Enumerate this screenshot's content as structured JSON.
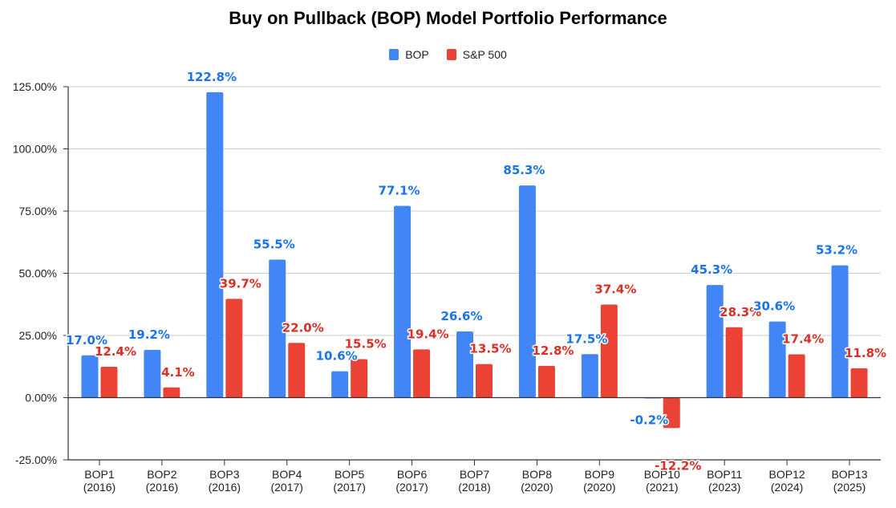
{
  "chart_data": {
    "type": "bar",
    "title": "Buy on Pullback (BOP) Model Portfolio Performance",
    "xlabel": "",
    "ylabel": "",
    "ylim": [
      -25,
      125
    ],
    "yticks": [
      -25,
      0,
      25,
      50,
      75,
      100,
      125
    ],
    "ytick_labels": [
      "-25.00%",
      "0.00%",
      "25.00%",
      "50.00%",
      "75.00%",
      "100.00%",
      "125.00%"
    ],
    "grid": true,
    "legend_position": "top-center",
    "categories": [
      [
        "BOP1",
        "(2016)"
      ],
      [
        "BOP2",
        "(2016)"
      ],
      [
        "BOP3",
        "(2016)"
      ],
      [
        "BOP4",
        "(2017)"
      ],
      [
        "BOP5",
        "(2017)"
      ],
      [
        "BOP6",
        "(2017)"
      ],
      [
        "BOP7",
        "(2018)"
      ],
      [
        "BOP8",
        "(2020)"
      ],
      [
        "BOP9",
        "(2020)"
      ],
      [
        "BOP10",
        "(2021)"
      ],
      [
        "BOP11",
        "(2023)"
      ],
      [
        "BOP12",
        "(2024)"
      ],
      [
        "BOP13",
        "(2025)"
      ]
    ],
    "series": [
      {
        "name": "BOP",
        "color": "#4285f4",
        "label_color": "#1a73e8",
        "values": [
          17.0,
          19.2,
          122.8,
          55.5,
          10.6,
          77.1,
          26.6,
          85.3,
          17.5,
          -0.2,
          45.3,
          30.6,
          53.2
        ],
        "labels": [
          "17.0%",
          "19.2%",
          "122.8%",
          "55.5%",
          "10.6%",
          "77.1%",
          "26.6%",
          "85.3%",
          "17.5%",
          "-0.2%",
          "45.3%",
          "30.6%",
          "53.2%"
        ]
      },
      {
        "name": "S&P 500",
        "color": "#ea4335",
        "label_color": "#d93025",
        "values": [
          12.4,
          4.1,
          39.7,
          22.0,
          15.5,
          19.4,
          13.5,
          12.8,
          37.4,
          -12.2,
          28.3,
          17.4,
          11.8
        ],
        "labels": [
          "12.4%",
          "4.1%",
          "39.7%",
          "22.0%",
          "15.5%",
          "19.4%",
          "13.5%",
          "12.8%",
          "37.4%",
          "-12.2%",
          "28.3%",
          "17.4%",
          "11.8%"
        ]
      }
    ]
  }
}
